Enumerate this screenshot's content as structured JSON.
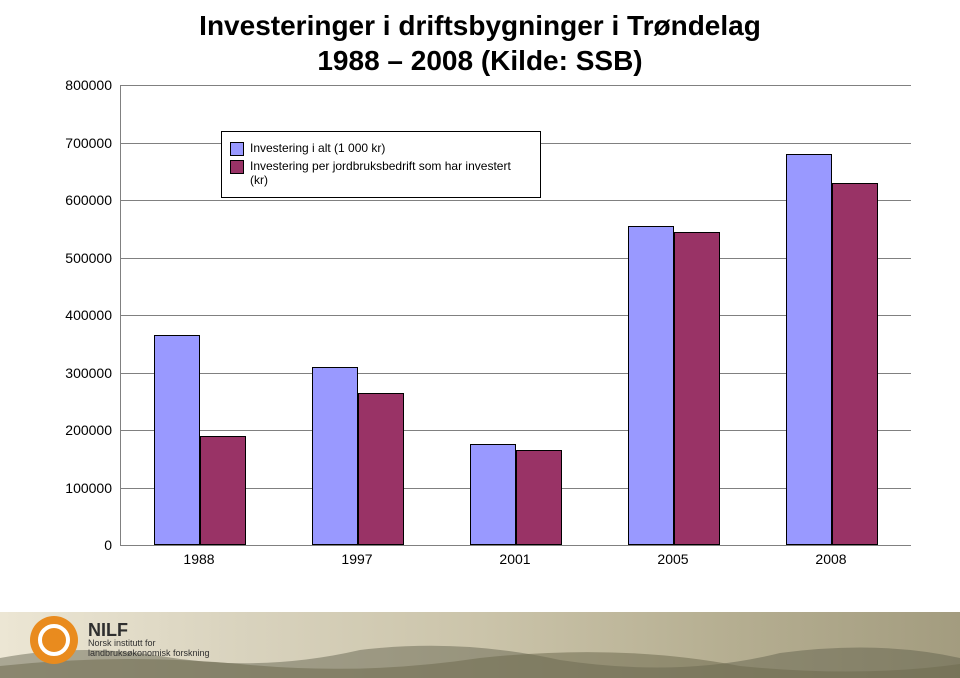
{
  "title_line1": "Investeringer i driftsbygninger i Trøndelag",
  "title_line2": "1988 – 2008 (Kilde: SSB)",
  "chart": {
    "type": "bar",
    "ylim": [
      0,
      800000
    ],
    "ytick_step": 100000,
    "yticks": [
      "0",
      "100000",
      "200000",
      "300000",
      "400000",
      "500000",
      "600000",
      "700000",
      "800000"
    ],
    "categories": [
      "1988",
      "1997",
      "2001",
      "2005",
      "2008"
    ],
    "series": [
      {
        "name": "Investering i alt (1 000 kr)",
        "color": "#9999ff",
        "values": [
          365000,
          310000,
          175000,
          555000,
          680000
        ]
      },
      {
        "name": "Investering per jordbruksbedrift som har investert (kr)",
        "color": "#993366",
        "values": [
          190000,
          265000,
          165000,
          545000,
          630000
        ]
      }
    ],
    "grid_color": "#808080",
    "background_color": "#ffffff",
    "bar_border": "#000000",
    "label_fontsize": 14,
    "legend_fontsize": 12,
    "legend_border": "#000000",
    "legend_bg": "#ffffff"
  },
  "footer": {
    "org_short": "NILF",
    "org_line1": "Norsk institutt for",
    "org_line2": "landbruksøkonomisk forskning",
    "logo_color": "#e98b1e",
    "bg_gradient": [
      "#ece6d4",
      "#d9d3be",
      "#cbc4aa",
      "#b6af92",
      "#a39c7f"
    ]
  }
}
